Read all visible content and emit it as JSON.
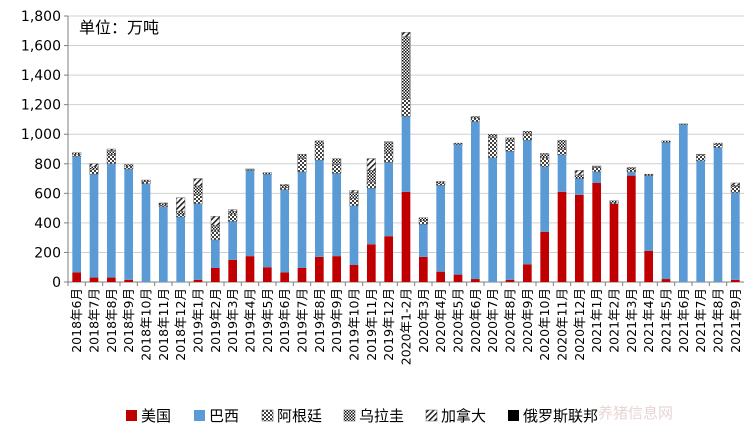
{
  "colors": {
    "us": "#c00000",
    "brazil": "#5b9bd5",
    "argentina": "#7f7f7f",
    "uruguay": "#404040",
    "canada": "#a6a6a6",
    "russia": "#000000",
    "axis": "#7f7f7f"
  },
  "watermark": "养猪信息网",
  "chart_data": {
    "type": "bar",
    "stacked": true,
    "unit_label": "单位：万吨",
    "ylim": [
      0,
      1800
    ],
    "y_ticks": [
      "0",
      "200",
      "400",
      "600",
      "800",
      "1,000",
      "1,200",
      "1,400",
      "1,600",
      "1,800"
    ],
    "categories": [
      "2018年6月",
      "2018年7月",
      "2018年8月",
      "2018年9月",
      "2018年10月",
      "2018年11月",
      "2018年12月",
      "2019年1月",
      "2019年2月",
      "2019年3月",
      "2019年4月",
      "2019年5月",
      "2019年6月",
      "2019年7月",
      "2019年8月",
      "2019年9月",
      "2019年10月",
      "2019年11月",
      "2019年12月",
      "2020年1-2月",
      "2020年3月",
      "2020年4月",
      "2020年5月",
      "2020年6月",
      "2020年7月",
      "2020年8月",
      "2020年9月",
      "2020年10月",
      "2020年11月",
      "2020年12月",
      "2021年1月",
      "2021年2月",
      "2021年3月",
      "2021年4月",
      "2021年5月",
      "2021年6月",
      "2021年7月",
      "2021年8月",
      "2021年9月"
    ],
    "series": [
      {
        "name": "美国",
        "key": "us",
        "pattern": "solid",
        "values": [
          65,
          30,
          30,
          15,
          0,
          0,
          0,
          15,
          95,
          150,
          175,
          100,
          65,
          95,
          170,
          175,
          115,
          255,
          310,
          610,
          170,
          70,
          50,
          20,
          0,
          15,
          120,
          340,
          610,
          590,
          670,
          530,
          720,
          210,
          20,
          0,
          0,
          0,
          15
        ]
      },
      {
        "name": "巴西",
        "key": "brazil",
        "pattern": "solid",
        "values": [
          785,
          700,
          770,
          750,
          665,
          510,
          440,
          515,
          190,
          260,
          580,
          630,
          560,
          650,
          655,
          560,
          400,
          380,
          500,
          510,
          220,
          585,
          880,
          1065,
          840,
          870,
          840,
          440,
          250,
          110,
          75,
          0,
          25,
          510,
          925,
          1065,
          820,
          910,
          590
        ]
      },
      {
        "name": "阿根廷",
        "key": "argentina",
        "pattern": "check",
        "values": [
          15,
          35,
          60,
          20,
          15,
          10,
          20,
          60,
          60,
          50,
          0,
          0,
          15,
          90,
          100,
          60,
          50,
          40,
          60,
          120,
          25,
          15,
          0,
          25,
          140,
          70,
          40,
          60,
          40,
          0,
          30,
          10,
          20,
          0,
          0,
          0,
          40,
          20,
          40
        ]
      },
      {
        "name": "乌拉圭",
        "key": "uruguay",
        "pattern": "checkfine",
        "values": [
          10,
          15,
          30,
          10,
          10,
          10,
          20,
          60,
          40,
          20,
          10,
          10,
          15,
          30,
          30,
          40,
          40,
          80,
          80,
          420,
          20,
          10,
          10,
          10,
          20,
          20,
          20,
          30,
          60,
          25,
          10,
          10,
          10,
          10,
          10,
          5,
          5,
          10,
          10
        ]
      },
      {
        "name": "加拿大",
        "key": "canada",
        "pattern": "diag",
        "values": [
          0,
          20,
          10,
          0,
          0,
          5,
          90,
          50,
          60,
          10,
          0,
          0,
          5,
          0,
          0,
          0,
          15,
          80,
          0,
          30,
          0,
          0,
          0,
          0,
          0,
          0,
          0,
          0,
          0,
          30,
          0,
          0,
          0,
          0,
          0,
          0,
          0,
          0,
          15
        ]
      },
      {
        "name": "俄罗斯联邦",
        "key": "russia",
        "pattern": "solid",
        "values": [
          0,
          0,
          0,
          0,
          0,
          0,
          0,
          0,
          0,
          0,
          0,
          0,
          0,
          0,
          0,
          0,
          0,
          0,
          0,
          0,
          0,
          0,
          0,
          0,
          0,
          0,
          0,
          0,
          0,
          0,
          0,
          0,
          0,
          0,
          0,
          0,
          0,
          0,
          0
        ]
      }
    ]
  }
}
